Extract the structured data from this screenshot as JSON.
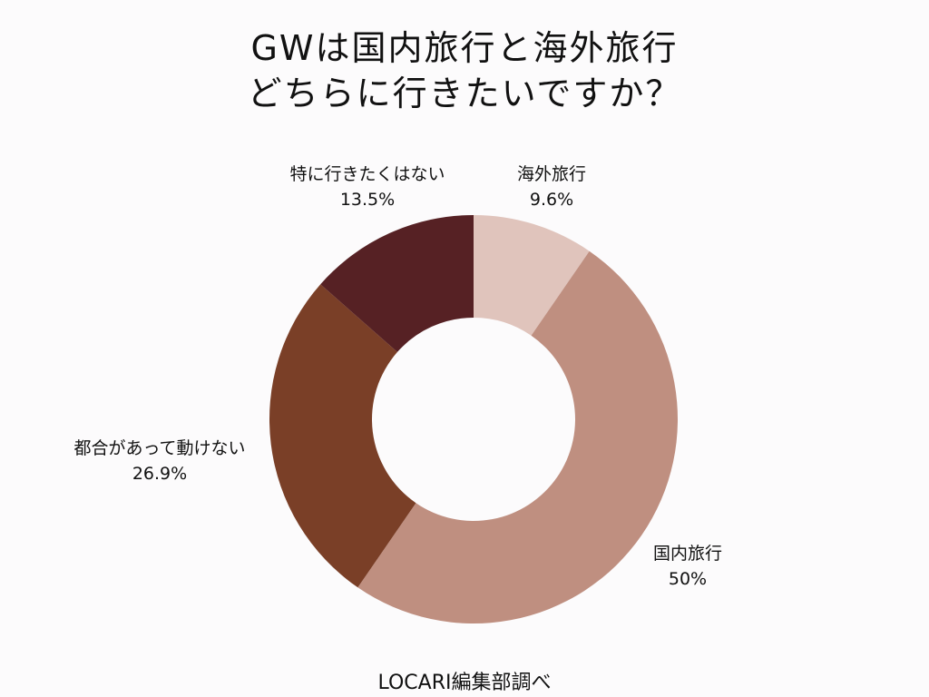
{
  "title": {
    "line1": "GWは国内旅行と海外旅行",
    "line2": "どちらに行きたいですか？"
  },
  "source": "LOCARI編集部調べ",
  "chart_data": {
    "type": "pie",
    "donut": true,
    "title": "GWは国内旅行と海外旅行 どちらに行きたいですか？",
    "categories": [
      "海外旅行",
      "国内旅行",
      "都合があって動けない",
      "特に行きたくはない"
    ],
    "values": [
      9.6,
      50,
      26.9,
      13.5
    ],
    "value_labels": [
      "9.6%",
      "50%",
      "26.9%",
      "13.5%"
    ],
    "colors": [
      "#E0C4BC",
      "#BF8F80",
      "#7A3F27",
      "#562124"
    ],
    "start_angle": "top (12 o'clock), clockwise",
    "legend": "none (direct labels)",
    "source": "LOCARI編集部調べ"
  },
  "labels": [
    {
      "name": "海外旅行",
      "value": "9.6%"
    },
    {
      "name": "国内旅行",
      "value": "50%"
    },
    {
      "name": "都合があって動けない",
      "value": "26.9%"
    },
    {
      "name": "特に行きたくはない",
      "value": "13.5%"
    }
  ]
}
